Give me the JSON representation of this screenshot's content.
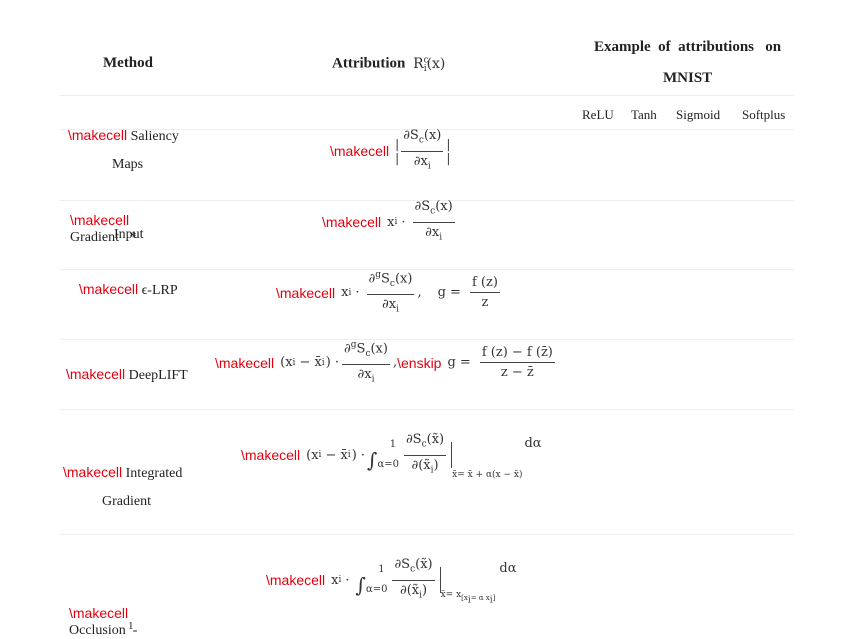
{
  "header": {
    "method": "Method",
    "attribution_label": "Attribution",
    "attribution_symbol": "R",
    "attribution_sub": "i",
    "attribution_sup": "c",
    "attribution_arg": "(x)",
    "example_line1": "Example  of  attributions   on",
    "example_line2": "MNIST"
  },
  "subheaders": [
    "ReLU",
    "Tanh",
    "Sigmoid",
    "Softplus"
  ],
  "macro": "\\makecell",
  "macro_enskip": "\\enskip",
  "rows": [
    {
      "method_line1": "Saliency",
      "method_line2": "Maps"
    },
    {
      "method_line1": "Gradient   *",
      "method_line2": "Input"
    },
    {
      "method_line1": "ϵ-LRP",
      "method_line2": ""
    },
    {
      "method_line1": "DeepLIFT",
      "method_line2": ""
    },
    {
      "method_line1": "Integrated",
      "method_line2": "Gradient"
    },
    {
      "method_line1": "Occlusion  -",
      "method_line2": "1"
    }
  ],
  "formulas": {
    "saliency": {
      "num": "∂S",
      "num_sub": "c",
      "num_arg": "(x)",
      "den": "∂x",
      "den_sub": "i"
    },
    "grad_input": {
      "lead": "x",
      "lead_sub": "i",
      "dot": "·",
      "num": "∂S",
      "num_sub": "c",
      "num_arg": "(x)",
      "den": "∂x",
      "den_sub": "i"
    },
    "lrp": {
      "lead": "x",
      "lead_sub": "i",
      "dot": "·",
      "num": "∂",
      "num_sup": "g",
      "num_rest": "S",
      "num_sub": "c",
      "num_arg": "(x)",
      "den": "∂x",
      "den_sub": "i",
      "comma": ",",
      "g_eq": "g =",
      "g_num": "f (z)",
      "g_den": "z"
    },
    "deeplift": {
      "lead": "(x",
      "lead_sub": "i",
      "minus": "−  x̄",
      "minus_sub": "i",
      "close": ") ·",
      "num": "∂",
      "num_sup": "g",
      "num_rest": "S",
      "num_sub": "c",
      "num_arg": "(x)",
      "den": "∂x",
      "den_sub": "i",
      "comma": ",",
      "g_eq": "g =",
      "g_num": "f (z) − f (z̄)",
      "g_den": "z −  z̄"
    },
    "integrated": {
      "lead": "(x",
      "lead_sub": "i",
      "minus": "−  x̄",
      "minus_sub": "i",
      "close": ") ·",
      "int_top": "1",
      "int_bottom": "α=0",
      "num": "∂S",
      "num_sub": "c",
      "num_arg": "(x̃)",
      "den": "∂(x̃",
      "den_sub": "i",
      "den_close": ")",
      "eval": "x̃= x̄ + α(x − x̄)",
      "tail": "dα"
    },
    "occlusion": {
      "lead": "x",
      "lead_sub": "i",
      "dot": "·",
      "int_top": "1",
      "int_bottom": "α=0",
      "num": "∂S",
      "num_sub": "c",
      "num_arg": "(x̃)",
      "den": "∂(x̃",
      "den_sub": "i",
      "den_close": ")",
      "eval": "x̃= x",
      "eval_sub": "[x",
      "eval_sub2": "i",
      "eval_sub3": "= α x",
      "eval_sub4": "i",
      "eval_sub5": "]",
      "tail": "dα"
    }
  }
}
